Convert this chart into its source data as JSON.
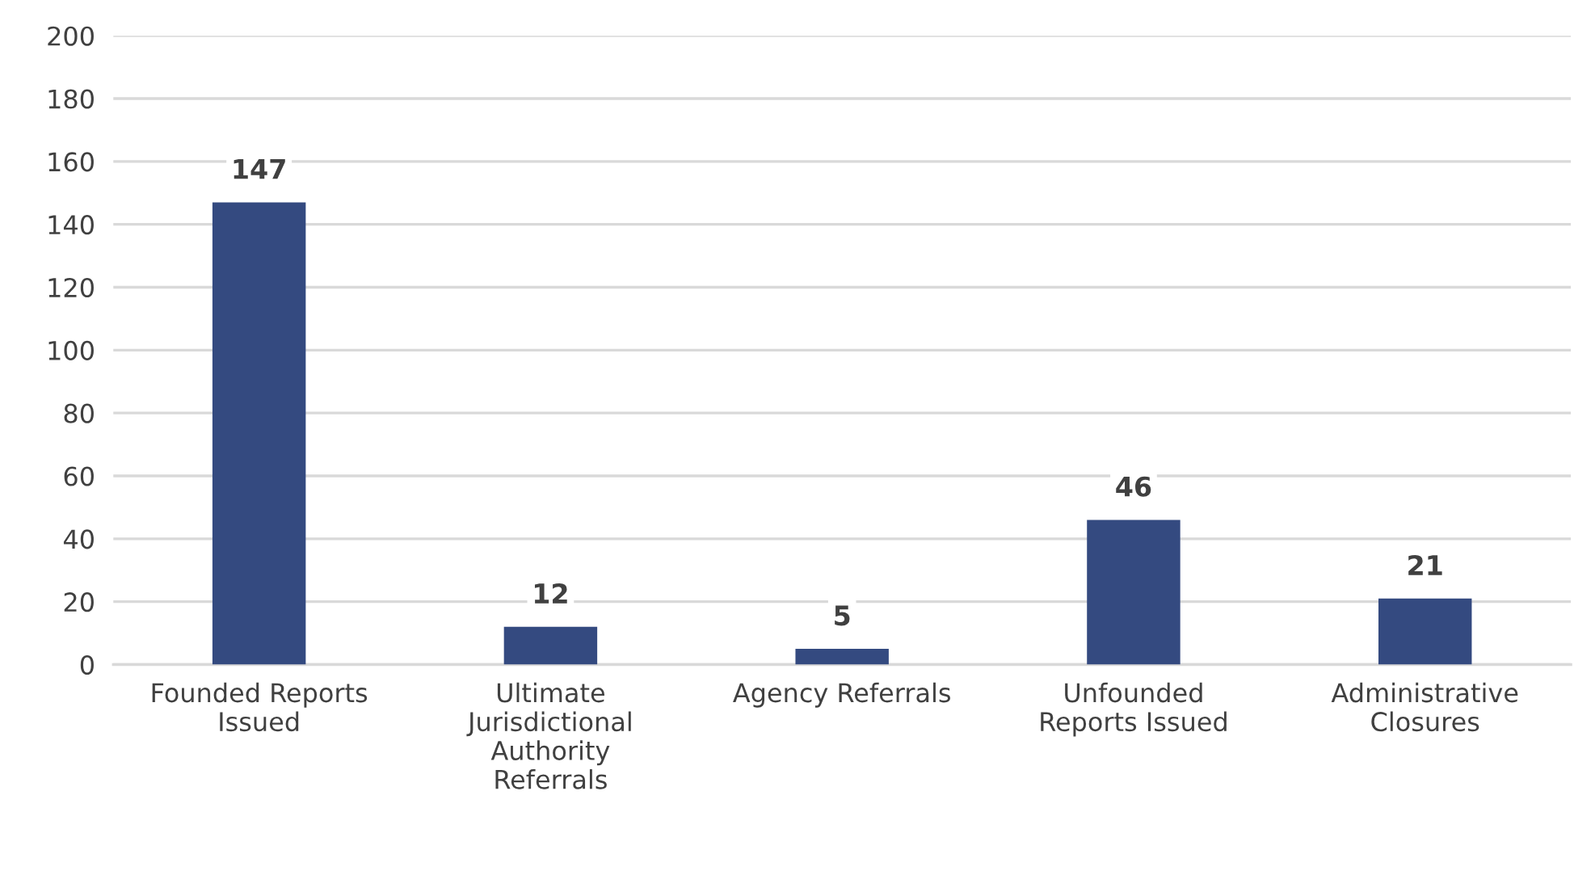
{
  "chart_data": {
    "type": "bar",
    "categories": [
      "Founded Reports\nIssued",
      "Ultimate\nJurisdictional\nAuthority\nReferrals",
      "Agency Referrals",
      "Unfounded\nReports Issued",
      "Administrative\nClosures"
    ],
    "values": [
      147,
      12,
      5,
      46,
      21
    ],
    "color": "#344a80",
    "ylim": [
      0,
      200
    ],
    "yticks": [
      0,
      20,
      40,
      60,
      80,
      100,
      120,
      140,
      160,
      180,
      200
    ],
    "grid": "y",
    "data_labels": true
  }
}
